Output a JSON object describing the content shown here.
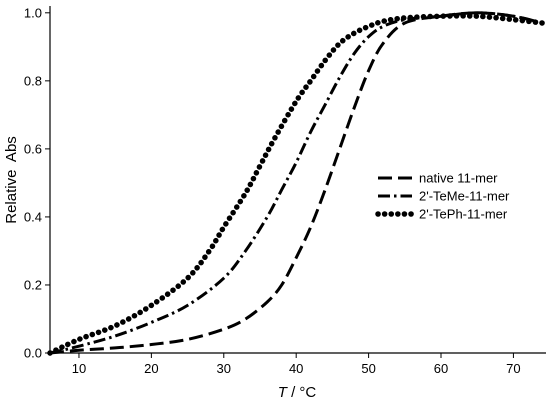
{
  "chart_data": {
    "type": "line",
    "title": "",
    "xlabel_italic": "T",
    "xlabel_rest": " / °C",
    "ylabel": "Relative  Abs",
    "xlim": [
      6,
      74.5
    ],
    "ylim": [
      0,
      1.02
    ],
    "xticks": [
      "10",
      "20",
      "30",
      "40",
      "50",
      "60",
      "70"
    ],
    "yticks": [
      "0.0",
      "0.2",
      "0.4",
      "0.6",
      "0.8",
      "1.0"
    ],
    "grid": false,
    "legend_position": "right-middle",
    "series": [
      {
        "name": "native 11-mer",
        "style": "dashed",
        "x": [
          6,
          10,
          15,
          20,
          25,
          30,
          33,
          36,
          38,
          40,
          42,
          44,
          46,
          48,
          50,
          52,
          55,
          60,
          65,
          70,
          74
        ],
        "y": [
          0.0,
          0.008,
          0.015,
          0.025,
          0.04,
          0.07,
          0.1,
          0.15,
          0.2,
          0.28,
          0.37,
          0.48,
          0.6,
          0.72,
          0.83,
          0.91,
          0.97,
          0.99,
          1.0,
          0.99,
          0.97
        ]
      },
      {
        "name": "2'-TeMe-11-mer",
        "style": "dash-dot",
        "x": [
          6,
          10,
          15,
          20,
          25,
          30,
          33,
          36,
          38,
          40,
          42,
          44,
          46,
          48,
          50,
          52,
          55,
          60,
          65,
          70,
          74
        ],
        "y": [
          0.0,
          0.02,
          0.05,
          0.09,
          0.14,
          0.22,
          0.3,
          0.4,
          0.48,
          0.56,
          0.65,
          0.73,
          0.81,
          0.88,
          0.93,
          0.96,
          0.98,
          0.99,
          1.0,
          0.99,
          0.97
        ]
      },
      {
        "name": "2'-TePh-11-mer",
        "style": "dotted",
        "x": [
          6,
          10,
          15,
          20,
          25,
          28,
          30,
          33,
          35,
          37,
          40,
          42,
          44,
          46,
          48,
          50,
          52,
          55,
          60,
          65,
          70,
          74
        ],
        "y": [
          0.0,
          0.04,
          0.08,
          0.14,
          0.22,
          0.3,
          0.37,
          0.47,
          0.55,
          0.63,
          0.74,
          0.8,
          0.86,
          0.91,
          0.94,
          0.96,
          0.975,
          0.985,
          0.99,
          0.99,
          0.98,
          0.97
        ]
      }
    ]
  }
}
